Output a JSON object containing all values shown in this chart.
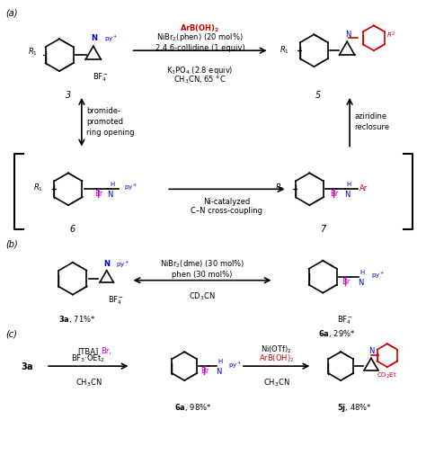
{
  "bg_color": "#ffffff",
  "black": "#000000",
  "red": "#cc0000",
  "magenta": "#cc00cc",
  "blue": "#0000cc",
  "panel_a_label": "(a)",
  "panel_b_label": "(b)",
  "panel_c_label": "(c)",
  "compound3_label": "3",
  "compound5_label": "5",
  "compound6_label": "6",
  "compound7_label": "7",
  "compound3a_label": "3a",
  "compound6a_label": "6a",
  "compound5j_label": "5j",
  "yield_3a": "71%*",
  "yield_6a_b": "29%*",
  "yield_6a_c": "98%*",
  "yield_5j": "48%*",
  "arrow_a_conditions": "ArB(OH)₂\nNiBr₂(phen) (20 mol%)\n2,4,6-collidine (1 equiv)\n\nK₃PO₄ (2.8 equiv)\nCH₃CN, 65 °C",
  "arrow_b_conditions": "NiBr₂(dme) (30 mol%)\nphen (30 mol%)\n\nCD₃CN",
  "arrow_left_label": "bromide-\npromoted\nring opening",
  "arrow_right_label": "aziridine\nreclosure",
  "arrow_middle_label": "Ni-catalyzed\nC–N cross-coupling",
  "arrow_c1_conditions": "[TBA]Br,\nBF₃·OEt₂\nCH₃CN",
  "arrow_c2_conditions": "Ni(OTf)₂\nArB(OH)₂\nCH₃CN",
  "BF4_label": "BF₄⁻",
  "NiBr2_conditions_a": "NiBr₂(phen) (20 mol%)",
  "ArBOH2": "ArB(OH)₂"
}
